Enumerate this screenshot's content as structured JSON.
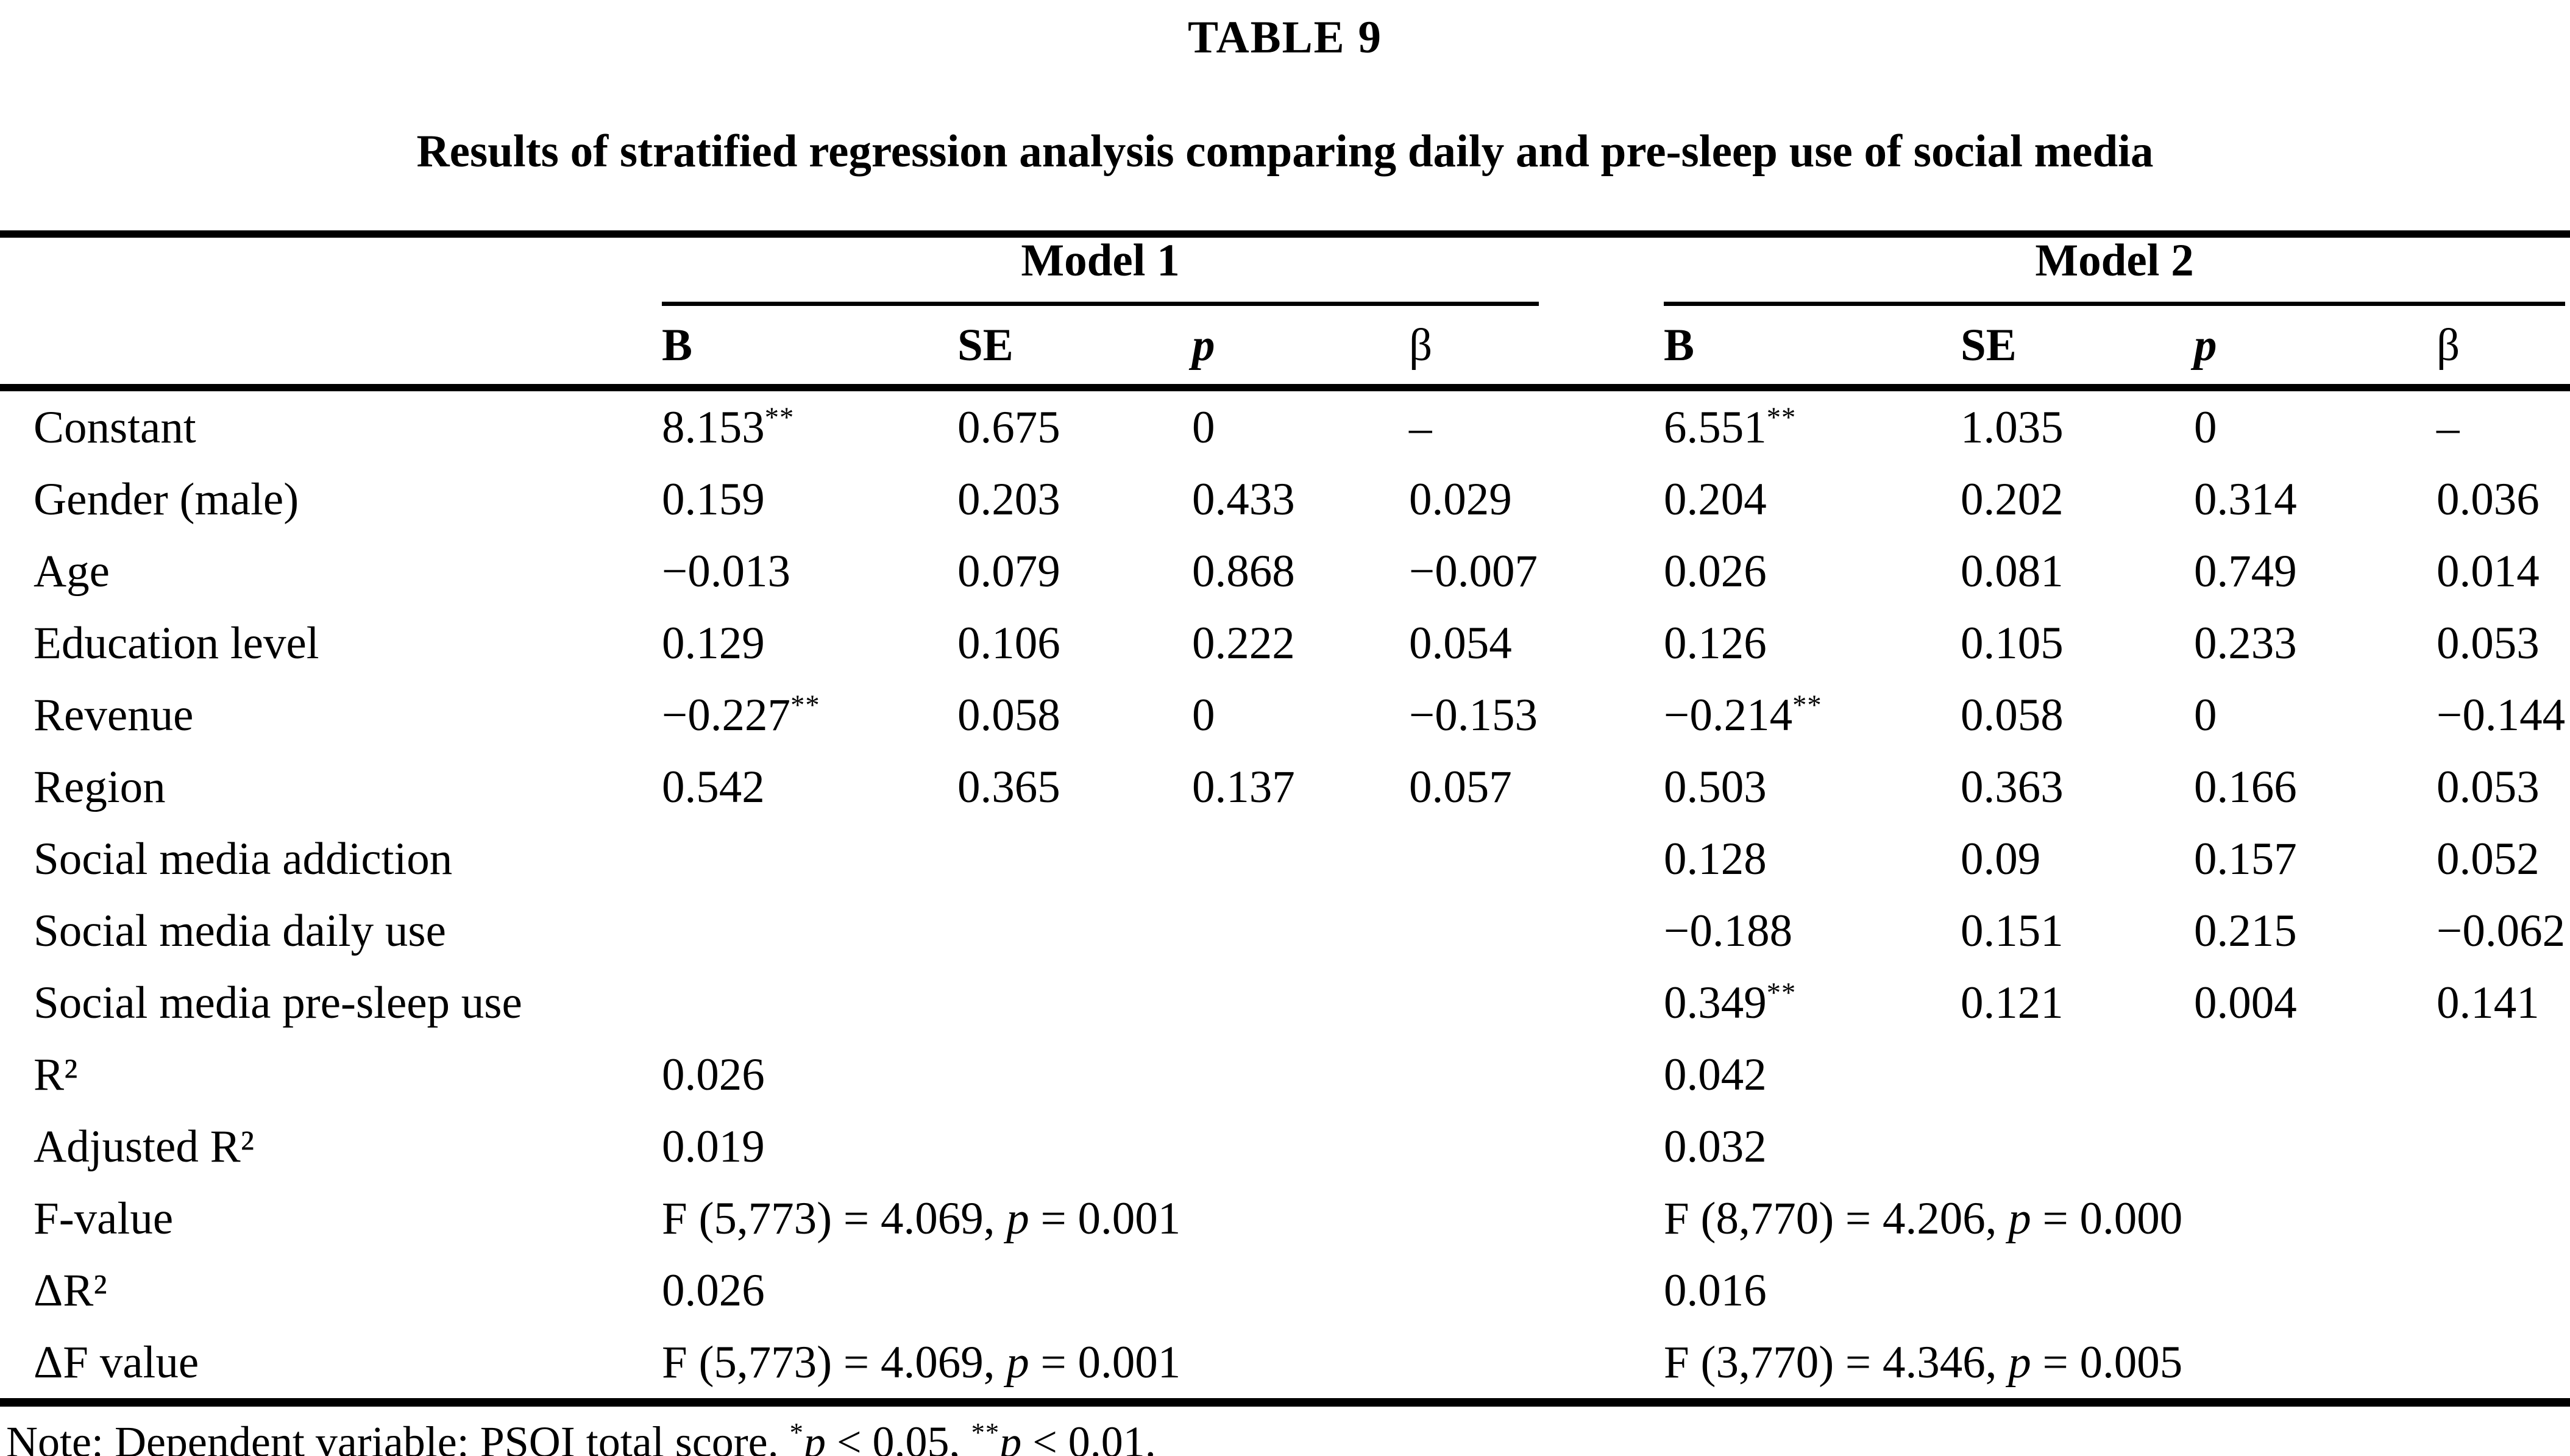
{
  "title": "TABLE 9",
  "subtitle": "Results of stratified regression analysis comparing daily and pre-sleep use of social media",
  "header": {
    "model1": "Model 1",
    "model2": "Model 2",
    "cols": {
      "B": "B",
      "SE": "SE",
      "p": "p",
      "beta": "β"
    }
  },
  "rows": [
    {
      "label": "Constant",
      "m1": {
        "B": {
          "v": "8.153",
          "sup": "**"
        },
        "SE": {
          "v": "0.675"
        },
        "p": {
          "v": "0"
        },
        "beta": {
          "v": "–"
        }
      },
      "m2": {
        "B": {
          "v": "6.551",
          "sup": "**"
        },
        "SE": {
          "v": "1.035"
        },
        "p": {
          "v": "0"
        },
        "beta": {
          "v": "–"
        }
      }
    },
    {
      "label": "Gender (male)",
      "m1": {
        "B": {
          "v": "0.159"
        },
        "SE": {
          "v": "0.203"
        },
        "p": {
          "v": "0.433"
        },
        "beta": {
          "v": "0.029"
        }
      },
      "m2": {
        "B": {
          "v": "0.204"
        },
        "SE": {
          "v": "0.202"
        },
        "p": {
          "v": "0.314"
        },
        "beta": {
          "v": "0.036"
        }
      }
    },
    {
      "label": "Age",
      "m1": {
        "B": {
          "v": "−0.013"
        },
        "SE": {
          "v": "0.079"
        },
        "p": {
          "v": "0.868"
        },
        "beta": {
          "v": "−0.007"
        }
      },
      "m2": {
        "B": {
          "v": "0.026"
        },
        "SE": {
          "v": "0.081"
        },
        "p": {
          "v": "0.749"
        },
        "beta": {
          "v": "0.014"
        }
      }
    },
    {
      "label": "Education level",
      "m1": {
        "B": {
          "v": "0.129"
        },
        "SE": {
          "v": "0.106"
        },
        "p": {
          "v": "0.222"
        },
        "beta": {
          "v": "0.054"
        }
      },
      "m2": {
        "B": {
          "v": "0.126"
        },
        "SE": {
          "v": "0.105"
        },
        "p": {
          "v": "0.233"
        },
        "beta": {
          "v": "0.053"
        }
      }
    },
    {
      "label": "Revenue",
      "m1": {
        "B": {
          "v": "−0.227",
          "sup": "**"
        },
        "SE": {
          "v": "0.058"
        },
        "p": {
          "v": "0"
        },
        "beta": {
          "v": "−0.153"
        }
      },
      "m2": {
        "B": {
          "v": "−0.214",
          "sup": "**"
        },
        "SE": {
          "v": "0.058"
        },
        "p": {
          "v": "0"
        },
        "beta": {
          "v": "−0.144"
        }
      }
    },
    {
      "label": "Region",
      "m1": {
        "B": {
          "v": "0.542"
        },
        "SE": {
          "v": "0.365"
        },
        "p": {
          "v": "0.137"
        },
        "beta": {
          "v": "0.057"
        }
      },
      "m2": {
        "B": {
          "v": "0.503"
        },
        "SE": {
          "v": "0.363"
        },
        "p": {
          "v": "0.166"
        },
        "beta": {
          "v": "0.053"
        }
      }
    },
    {
      "label": "Social media addiction",
      "m1": {},
      "m2": {
        "B": {
          "v": "0.128"
        },
        "SE": {
          "v": "0.09"
        },
        "p": {
          "v": "0.157"
        },
        "beta": {
          "v": "0.052"
        }
      }
    },
    {
      "label": "Social media daily use",
      "m1": {},
      "m2": {
        "B": {
          "v": "−0.188"
        },
        "SE": {
          "v": "0.151"
        },
        "p": {
          "v": "0.215"
        },
        "beta": {
          "v": "−0.062"
        }
      }
    },
    {
      "label": "Social media pre-sleep use",
      "m1": {},
      "m2": {
        "B": {
          "v": "0.349",
          "sup": "**"
        },
        "SE": {
          "v": "0.121"
        },
        "p": {
          "v": "0.004"
        },
        "beta": {
          "v": "0.141"
        }
      }
    }
  ],
  "stats": [
    {
      "label": "R²",
      "m1": {
        "pre": "0.026"
      },
      "m2": {
        "pre": "0.042"
      }
    },
    {
      "label": "Adjusted R²",
      "m1": {
        "pre": "0.019"
      },
      "m2": {
        "pre": "0.032"
      }
    },
    {
      "label": "F-value",
      "m1": {
        "pre": "F (5,773) = 4.069, ",
        "p": "p",
        "post": " = 0.001"
      },
      "m2": {
        "pre": "F (8,770) = 4.206, ",
        "p": "p",
        "post": " = 0.000"
      }
    },
    {
      "label": "ΔR²",
      "m1": {
        "pre": "0.026"
      },
      "m2": {
        "pre": "0.016"
      }
    },
    {
      "label": "ΔF value",
      "m1": {
        "pre": "F (5,773) = 4.069, ",
        "p": "p",
        "post": " = 0.001"
      },
      "m2": {
        "pre": "F (3,770) = 4.346, ",
        "p": "p",
        "post": " = 0.005"
      }
    }
  ],
  "note": {
    "prefix": "Note: Dependent variable: PSQI total score. ",
    "star1": "*",
    "p1": "p",
    "mid": " < 0.05, ",
    "star2": "**",
    "p2": "p",
    "end": " < 0.01."
  }
}
